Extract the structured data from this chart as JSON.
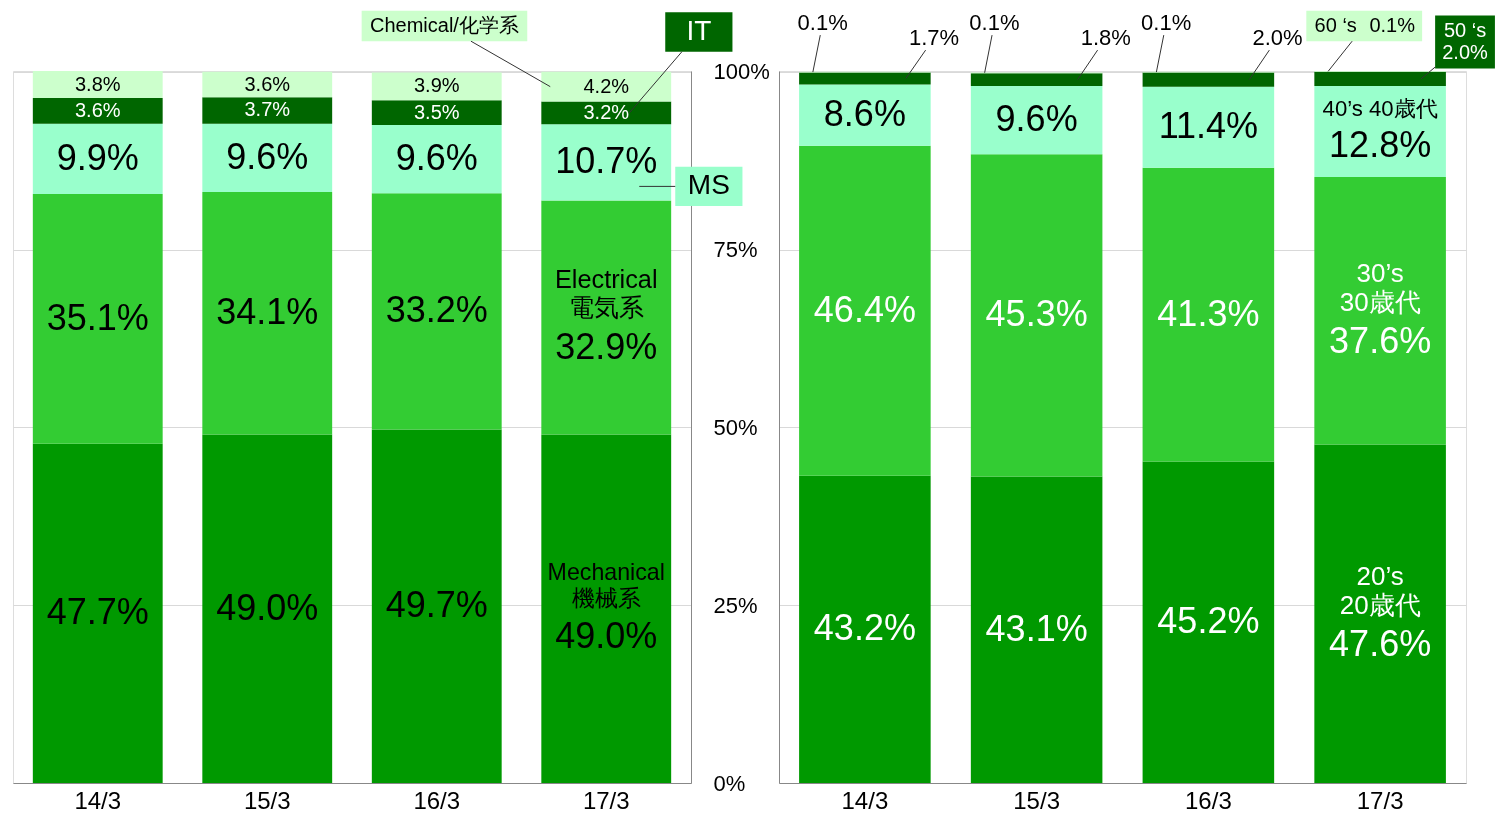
{
  "chart_data": [
    {
      "type": "bar",
      "stacked": true,
      "categories": [
        "14/3",
        "15/3",
        "16/3",
        "17/3"
      ],
      "series": [
        {
          "name": "Mechanical\n機械系",
          "color": "#009900",
          "values": [
            47.7,
            49.0,
            49.7,
            49.0
          ],
          "value_labels": [
            "47.7%",
            "49.0%",
            "49.7%",
            "49.0%"
          ]
        },
        {
          "name": "Electrical\n電気系",
          "color": "#33cc33",
          "values": [
            35.1,
            34.1,
            33.2,
            32.9
          ],
          "value_labels": [
            "35.1%",
            "34.1%",
            "33.2%",
            "32.9%"
          ]
        },
        {
          "name": "MS",
          "color": "#99ffcc",
          "values": [
            9.9,
            9.6,
            9.6,
            10.7
          ],
          "value_labels": [
            "9.9%",
            "9.6%",
            "9.6%",
            "10.7%"
          ]
        },
        {
          "name": "IT",
          "color": "#006600",
          "values": [
            3.6,
            3.7,
            3.5,
            3.2
          ],
          "value_labels": [
            "3.6%",
            "3.7%",
            "3.5%",
            "3.2%"
          ]
        },
        {
          "name": "Chemical/化学系",
          "color": "#ccffcc",
          "values": [
            3.8,
            3.6,
            3.9,
            4.2
          ],
          "value_labels": [
            "3.8%",
            "3.6%",
            "3.9%",
            "4.2%"
          ]
        }
      ],
      "ylim": [
        0,
        100.1
      ],
      "yticks": [
        {
          "value": 0,
          "label": "0%"
        },
        {
          "value": 25,
          "label": "25%"
        },
        {
          "value": 50,
          "label": "50%"
        },
        {
          "value": 75,
          "label": "75%"
        },
        {
          "value": 100,
          "label": "100%"
        }
      ],
      "grid": "y"
    },
    {
      "type": "bar",
      "stacked": true,
      "categories": [
        "14/3",
        "15/3",
        "16/3",
        "17/3"
      ],
      "series": [
        {
          "name": "20’s\n20歳代",
          "color": "#009900",
          "values": [
            43.2,
            43.1,
            45.2,
            47.6
          ],
          "value_labels": [
            "43.2%",
            "43.1%",
            "45.2%",
            "47.6%"
          ]
        },
        {
          "name": "30’s\n30歳代",
          "color": "#33cc33",
          "values": [
            46.4,
            45.3,
            41.3,
            37.6
          ],
          "value_labels": [
            "46.4%",
            "45.3%",
            "41.3%",
            "37.6%"
          ]
        },
        {
          "name": "40’s  40歳代",
          "color": "#99ffcc",
          "values": [
            8.6,
            9.6,
            11.4,
            12.8
          ],
          "value_labels": [
            "8.6%",
            "9.6%",
            "11.4%",
            "12.8%"
          ]
        },
        {
          "name": "50 ‘s",
          "color": "#006600",
          "values": [
            1.7,
            1.8,
            2.0,
            2.0
          ],
          "value_labels": [
            "1.7%",
            "1.8%",
            "2.0%",
            "2.0%"
          ]
        },
        {
          "name": "60 ‘s",
          "color": "#ccffcc",
          "values": [
            0.1,
            0.1,
            0.1,
            0.1
          ],
          "value_labels": [
            "0.1%",
            "0.1%",
            "0.1%",
            "0.1%"
          ]
        }
      ],
      "ylim": [
        0,
        100.1
      ],
      "yticks": [
        {
          "value": 0,
          "label": null
        },
        {
          "value": 25,
          "label": null
        },
        {
          "value": 50,
          "label": null
        },
        {
          "value": 75,
          "label": null
        },
        {
          "value": 100,
          "label": null
        }
      ],
      "grid": "y",
      "tick_labels": "x"
    }
  ]
}
